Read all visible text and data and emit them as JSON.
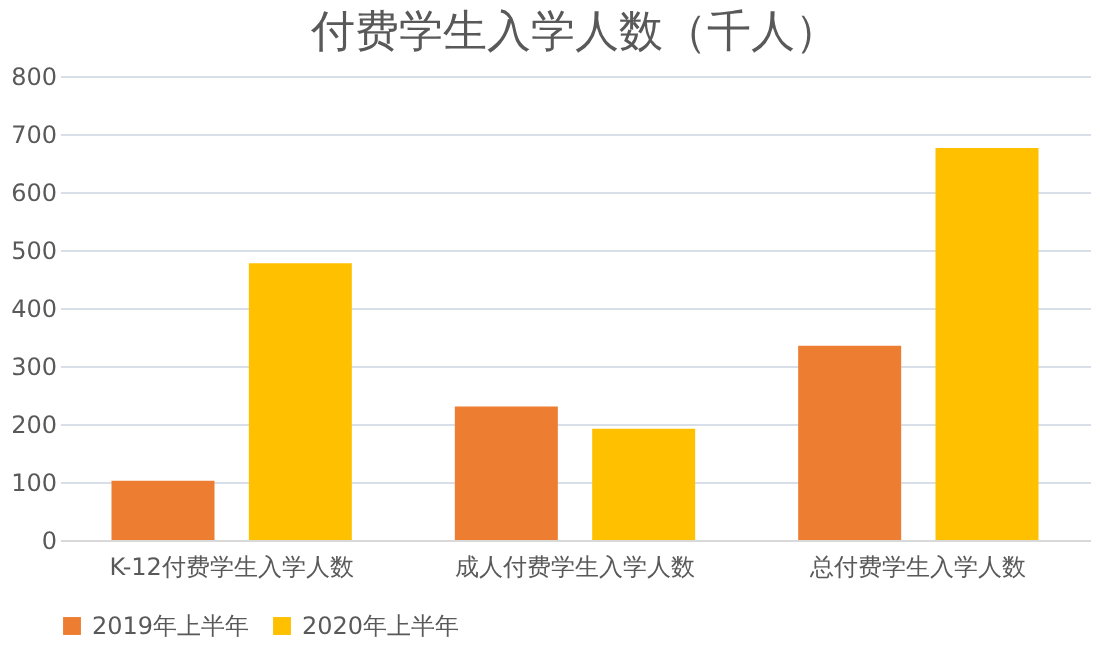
{
  "chart_data": {
    "type": "bar",
    "title": "付费学生入学人数（千人）",
    "categories": [
      "K-12付费学生入学人数",
      "成人付费学生入学人数",
      "总付费学生入学人数"
    ],
    "series": [
      {
        "name": "2019年上半年",
        "color": "#ed7d31",
        "values": [
          102,
          230,
          335
        ]
      },
      {
        "name": "2020年上半年",
        "color": "#ffc000",
        "values": [
          477,
          192,
          676
        ]
      }
    ],
    "ylim": [
      0,
      800
    ],
    "yticks": [
      0,
      100,
      200,
      300,
      400,
      500,
      600,
      700,
      800
    ],
    "grid": "y",
    "legend": "bottom"
  }
}
